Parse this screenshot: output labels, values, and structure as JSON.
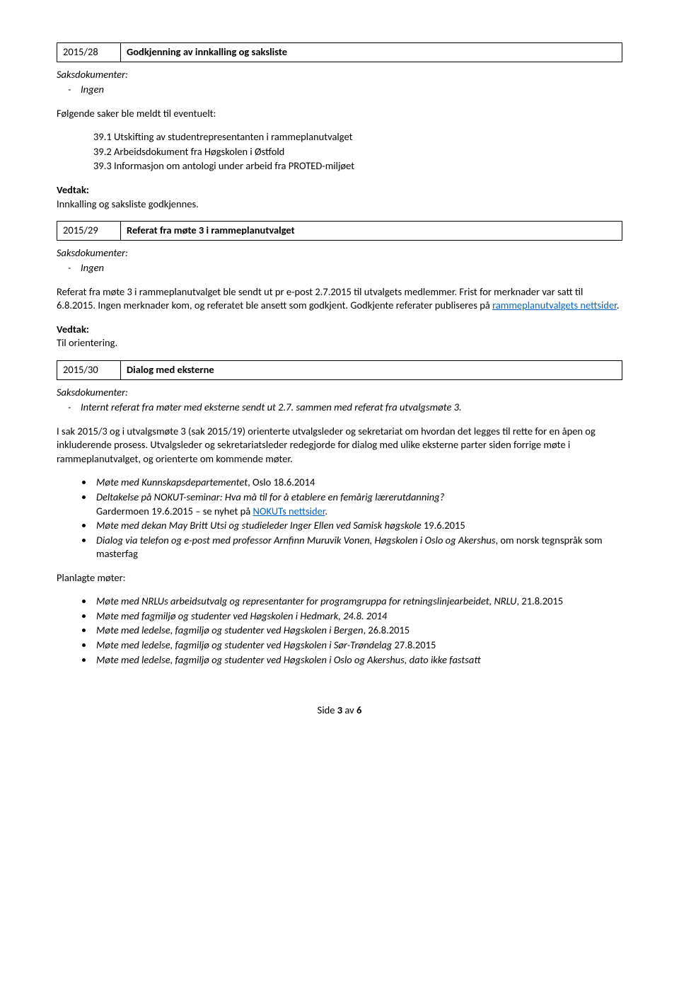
{
  "cases": [
    {
      "id": "2015/28",
      "title": "Godkjenning av innkalling og saksliste",
      "docs_label": "Saksdokumenter:",
      "docs": [
        "Ingen"
      ],
      "intro": "Følgende saker ble meldt til eventuelt:",
      "numbered": [
        "39.1 Utskifting av studentrepresentanten i rammeplanutvalget",
        "39.2 Arbeidsdokument fra Høgskolen i Østfold",
        "39.3 Informasjon om antologi under arbeid fra PROTED-miljøet"
      ],
      "vedtak_label": "Vedtak:",
      "vedtak": "Innkalling og saksliste godkjennes."
    },
    {
      "id": "2015/29",
      "title": "Referat fra møte 3 i rammeplanutvalget",
      "docs_label": "Saksdokumenter:",
      "docs": [
        "Ingen"
      ],
      "body_before_link": "Referat fra møte 3 i rammeplanutvalget ble sendt ut pr e-post 2.7.2015 til utvalgets medlemmer. Frist for merknader var satt til 6.8.2015. Ingen merknader kom, og referatet ble ansett som godkjent. Godkjente referater publiseres på ",
      "link_text": "rammeplanutvalgets nettsider",
      "body_after_link": ".",
      "vedtak_label": "Vedtak:",
      "vedtak": "Til orientering."
    }
  ],
  "case30": {
    "id": "2015/30",
    "title": "Dialog med eksterne",
    "docs_label": "Saksdokumenter:",
    "docs_line": "Internt referat fra møter med eksterne sendt ut 2.7. sammen med referat fra utvalgsmøte 3.",
    "para1": "I sak 2015/3 og i utvalgsmøte 3 (sak 2015/19) orienterte utvalgsleder og sekretariat om hvordan det legges til rette for en åpen og inkluderende prosess. Utvalgsleder og sekretariatsleder redegjorde for dialog med ulike eksterne parter siden forrige møte i rammeplanutvalget, og orienterte om kommende møter.",
    "bullets1": [
      {
        "italic": "Møte med Kunnskapsdepartementet",
        "rest": ", Oslo 18.6.2014"
      },
      {
        "italic": "Deltakelse på NOKUT-seminar: Hva må til for å etablere en femårig lærerutdanning?",
        "rest": "",
        "sub_before": "Gardermoen 19.6.2015 – se nyhet på ",
        "sub_link": "NOKUTs nettsider",
        "sub_after": "."
      },
      {
        "italic": "Møte med dekan May Britt Utsi og studieleder Inger Ellen ved Samisk høgskole",
        "rest": " 19.6.2015"
      },
      {
        "italic": "Dialog via telefon og e-post med professor Arnfinn Muruvik Vonen, Høgskolen i Oslo og Akershus",
        "rest": ", om norsk tegnspråk som masterfag"
      }
    ],
    "planned_label": "Planlagte møter:",
    "bullets2": [
      {
        "italic": "Møte med NRLUs arbeidsutvalg og representanter for programgruppa for retningslinjearbeidet, NRLU",
        "rest": ", 21.8.2015"
      },
      {
        "italic": "Møte med fagmiljø og studenter ved Høgskolen i Hedmark, 24.8. 2014",
        "rest": ""
      },
      {
        "italic": "Møte med ledelse, fagmiljø og studenter ved Høgskolen i Bergen",
        "rest": ", 26.8.2015"
      },
      {
        "italic": "Møte med ledelse, fagmiljø og studenter ved Høgskolen i Sør-Trøndelag",
        "rest": " 27.8.2015"
      },
      {
        "italic": "Møte med ledelse, fagmiljø og studenter ved Høgskolen i Oslo og Akershus, dato ikke fastsatt",
        "rest": ""
      }
    ]
  },
  "footer": {
    "prefix": "Side ",
    "page": "3",
    "suffix": " av ",
    "total": "6"
  }
}
